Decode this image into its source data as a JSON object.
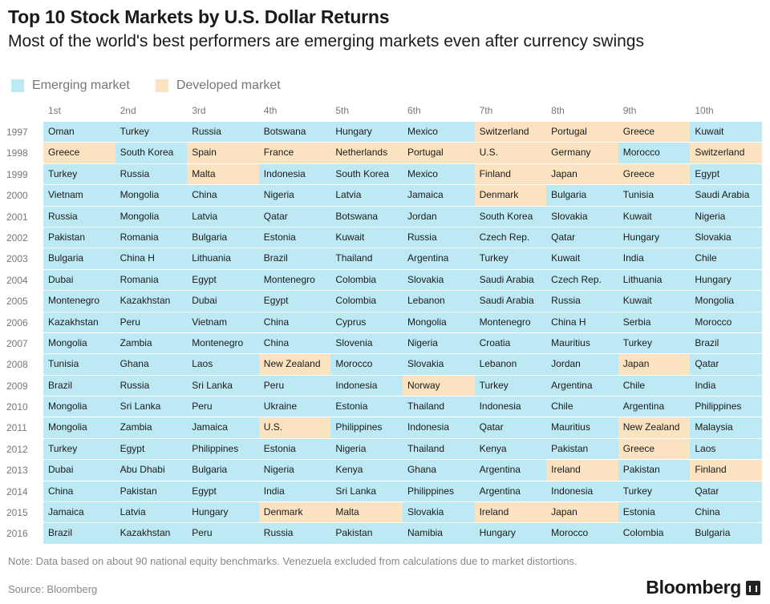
{
  "title": "Top 10 Stock Markets by U.S. Dollar Returns",
  "subtitle": "Most of the world's best performers are emerging markets even after currency swings",
  "legend": [
    {
      "label": "Emerging market",
      "color": "#bde9f5"
    },
    {
      "label": "Developed market",
      "color": "#fbe3c2"
    }
  ],
  "note": "Note: Data based on about 90 national equity benchmarks. Venezuela excluded from calculations due to market distortions.",
  "source": "Source: Bloomberg",
  "brand": "Bloomberg",
  "chart_data": {
    "type": "table",
    "columns": [
      "1st",
      "2nd",
      "3rd",
      "4th",
      "5th",
      "6th",
      "7th",
      "8th",
      "9th",
      "10th"
    ],
    "rows": [
      {
        "year": "1997",
        "cells": [
          [
            "Oman",
            "e"
          ],
          [
            "Turkey",
            "e"
          ],
          [
            "Russia",
            "e"
          ],
          [
            "Botswana",
            "e"
          ],
          [
            "Hungary",
            "e"
          ],
          [
            "Mexico",
            "e"
          ],
          [
            "Switzerland",
            "d"
          ],
          [
            "Portugal",
            "d"
          ],
          [
            "Greece",
            "d"
          ],
          [
            "Kuwait",
            "e"
          ]
        ]
      },
      {
        "year": "1998",
        "cells": [
          [
            "Greece",
            "d"
          ],
          [
            "South Korea",
            "e"
          ],
          [
            "Spain",
            "d"
          ],
          [
            "France",
            "d"
          ],
          [
            "Netherlands",
            "d"
          ],
          [
            "Portugal",
            "d"
          ],
          [
            "U.S.",
            "d"
          ],
          [
            "Germany",
            "d"
          ],
          [
            "Morocco",
            "e"
          ],
          [
            "Switzerland",
            "d"
          ]
        ]
      },
      {
        "year": "1999",
        "cells": [
          [
            "Turkey",
            "e"
          ],
          [
            "Russia",
            "e"
          ],
          [
            "Malta",
            "d"
          ],
          [
            "Indonesia",
            "e"
          ],
          [
            "South Korea",
            "e"
          ],
          [
            "Mexico",
            "e"
          ],
          [
            "Finland",
            "d"
          ],
          [
            "Japan",
            "d"
          ],
          [
            "Greece",
            "d"
          ],
          [
            "Egypt",
            "e"
          ]
        ]
      },
      {
        "year": "2000",
        "cells": [
          [
            "Vietnam",
            "e"
          ],
          [
            "Mongolia",
            "e"
          ],
          [
            "China",
            "e"
          ],
          [
            "Nigeria",
            "e"
          ],
          [
            "Latvia",
            "e"
          ],
          [
            "Jamaica",
            "e"
          ],
          [
            "Denmark",
            "d"
          ],
          [
            "Bulgaria",
            "e"
          ],
          [
            "Tunisia",
            "e"
          ],
          [
            "Saudi Arabia",
            "e"
          ]
        ]
      },
      {
        "year": "2001",
        "cells": [
          [
            "Russia",
            "e"
          ],
          [
            "Mongolia",
            "e"
          ],
          [
            "Latvia",
            "e"
          ],
          [
            "Qatar",
            "e"
          ],
          [
            "Botswana",
            "e"
          ],
          [
            "Jordan",
            "e"
          ],
          [
            "South Korea",
            "e"
          ],
          [
            "Slovakia",
            "e"
          ],
          [
            "Kuwait",
            "e"
          ],
          [
            "Nigeria",
            "e"
          ]
        ]
      },
      {
        "year": "2002",
        "cells": [
          [
            "Pakistan",
            "e"
          ],
          [
            "Romania",
            "e"
          ],
          [
            "Bulgaria",
            "e"
          ],
          [
            "Estonia",
            "e"
          ],
          [
            "Kuwait",
            "e"
          ],
          [
            "Russia",
            "e"
          ],
          [
            "Czech Rep.",
            "e"
          ],
          [
            "Qatar",
            "e"
          ],
          [
            "Hungary",
            "e"
          ],
          [
            "Slovakia",
            "e"
          ]
        ]
      },
      {
        "year": "2003",
        "cells": [
          [
            "Bulgaria",
            "e"
          ],
          [
            "China H",
            "e"
          ],
          [
            "Lithuania",
            "e"
          ],
          [
            "Brazil",
            "e"
          ],
          [
            "Thailand",
            "e"
          ],
          [
            "Argentina",
            "e"
          ],
          [
            "Turkey",
            "e"
          ],
          [
            "Kuwait",
            "e"
          ],
          [
            "India",
            "e"
          ],
          [
            "Chile",
            "e"
          ]
        ]
      },
      {
        "year": "2004",
        "cells": [
          [
            "Dubai",
            "e"
          ],
          [
            "Romania",
            "e"
          ],
          [
            "Egypt",
            "e"
          ],
          [
            "Montenegro",
            "e"
          ],
          [
            "Colombia",
            "e"
          ],
          [
            "Slovakia",
            "e"
          ],
          [
            "Saudi Arabia",
            "e"
          ],
          [
            "Czech Rep.",
            "e"
          ],
          [
            "Lithuania",
            "e"
          ],
          [
            "Hungary",
            "e"
          ]
        ]
      },
      {
        "year": "2005",
        "cells": [
          [
            "Montenegro",
            "e"
          ],
          [
            "Kazakhstan",
            "e"
          ],
          [
            "Dubai",
            "e"
          ],
          [
            "Egypt",
            "e"
          ],
          [
            "Colombia",
            "e"
          ],
          [
            "Lebanon",
            "e"
          ],
          [
            "Saudi Arabia",
            "e"
          ],
          [
            "Russia",
            "e"
          ],
          [
            "Kuwait",
            "e"
          ],
          [
            "Mongolia",
            "e"
          ]
        ]
      },
      {
        "year": "2006",
        "cells": [
          [
            "Kazakhstan",
            "e"
          ],
          [
            "Peru",
            "e"
          ],
          [
            "Vietnam",
            "e"
          ],
          [
            "China",
            "e"
          ],
          [
            "Cyprus",
            "e"
          ],
          [
            "Mongolia",
            "e"
          ],
          [
            "Montenegro",
            "e"
          ],
          [
            "China H",
            "e"
          ],
          [
            "Serbia",
            "e"
          ],
          [
            "Morocco",
            "e"
          ]
        ]
      },
      {
        "year": "2007",
        "cells": [
          [
            "Mongolia",
            "e"
          ],
          [
            "Zambia",
            "e"
          ],
          [
            "Montenegro",
            "e"
          ],
          [
            "China",
            "e"
          ],
          [
            "Slovenia",
            "e"
          ],
          [
            "Nigeria",
            "e"
          ],
          [
            "Croatia",
            "e"
          ],
          [
            "Mauritius",
            "e"
          ],
          [
            "Turkey",
            "e"
          ],
          [
            "Brazil",
            "e"
          ]
        ]
      },
      {
        "year": "2008",
        "cells": [
          [
            "Tunisia",
            "e"
          ],
          [
            "Ghana",
            "e"
          ],
          [
            "Laos",
            "e"
          ],
          [
            "New Zealand",
            "d"
          ],
          [
            "Morocco",
            "e"
          ],
          [
            "Slovakia",
            "e"
          ],
          [
            "Lebanon",
            "e"
          ],
          [
            "Jordan",
            "e"
          ],
          [
            "Japan",
            "d"
          ],
          [
            "Qatar",
            "e"
          ]
        ]
      },
      {
        "year": "2009",
        "cells": [
          [
            "Brazil",
            "e"
          ],
          [
            "Russia",
            "e"
          ],
          [
            "Sri Lanka",
            "e"
          ],
          [
            "Peru",
            "e"
          ],
          [
            "Indonesia",
            "e"
          ],
          [
            "Norway",
            "d"
          ],
          [
            "Turkey",
            "e"
          ],
          [
            "Argentina",
            "e"
          ],
          [
            "Chile",
            "e"
          ],
          [
            "India",
            "e"
          ]
        ]
      },
      {
        "year": "2010",
        "cells": [
          [
            "Mongolia",
            "e"
          ],
          [
            "Sri Lanka",
            "e"
          ],
          [
            "Peru",
            "e"
          ],
          [
            "Ukraine",
            "e"
          ],
          [
            "Estonia",
            "e"
          ],
          [
            "Thailand",
            "e"
          ],
          [
            "Indonesia",
            "e"
          ],
          [
            "Chile",
            "e"
          ],
          [
            "Argentina",
            "e"
          ],
          [
            "Philippines",
            "e"
          ]
        ]
      },
      {
        "year": "2011",
        "cells": [
          [
            "Mongolia",
            "e"
          ],
          [
            "Zambia",
            "e"
          ],
          [
            "Jamaica",
            "e"
          ],
          [
            "U.S.",
            "d"
          ],
          [
            "Philippines",
            "e"
          ],
          [
            "Indonesia",
            "e"
          ],
          [
            "Qatar",
            "e"
          ],
          [
            "Mauritius",
            "e"
          ],
          [
            "New Zealand",
            "d"
          ],
          [
            "Malaysia",
            "e"
          ]
        ]
      },
      {
        "year": "2012",
        "cells": [
          [
            "Turkey",
            "e"
          ],
          [
            "Egypt",
            "e"
          ],
          [
            "Philippines",
            "e"
          ],
          [
            "Estonia",
            "e"
          ],
          [
            "Nigeria",
            "e"
          ],
          [
            "Thailand",
            "e"
          ],
          [
            "Kenya",
            "e"
          ],
          [
            "Pakistan",
            "e"
          ],
          [
            "Greece",
            "d"
          ],
          [
            "Laos",
            "e"
          ]
        ]
      },
      {
        "year": "2013",
        "cells": [
          [
            "Dubai",
            "e"
          ],
          [
            "Abu Dhabi",
            "e"
          ],
          [
            "Bulgaria",
            "e"
          ],
          [
            "Nigeria",
            "e"
          ],
          [
            "Kenya",
            "e"
          ],
          [
            "Ghana",
            "e"
          ],
          [
            "Argentina",
            "e"
          ],
          [
            "Ireland",
            "d"
          ],
          [
            "Pakistan",
            "e"
          ],
          [
            "Finland",
            "d"
          ]
        ]
      },
      {
        "year": "2014",
        "cells": [
          [
            "China",
            "e"
          ],
          [
            "Pakistan",
            "e"
          ],
          [
            "Egypt",
            "e"
          ],
          [
            "India",
            "e"
          ],
          [
            "Sri Lanka",
            "e"
          ],
          [
            "Philippines",
            "e"
          ],
          [
            "Argentina",
            "e"
          ],
          [
            "Indonesia",
            "e"
          ],
          [
            "Turkey",
            "e"
          ],
          [
            "Qatar",
            "e"
          ]
        ]
      },
      {
        "year": "2015",
        "cells": [
          [
            "Jamaica",
            "e"
          ],
          [
            "Latvia",
            "e"
          ],
          [
            "Hungary",
            "e"
          ],
          [
            "Denmark",
            "d"
          ],
          [
            "Malta",
            "d"
          ],
          [
            "Slovakia",
            "e"
          ],
          [
            "Ireland",
            "d"
          ],
          [
            "Japan",
            "d"
          ],
          [
            "Estonia",
            "e"
          ],
          [
            "China",
            "e"
          ]
        ]
      },
      {
        "year": "2016",
        "cells": [
          [
            "Brazil",
            "e"
          ],
          [
            "Kazakhstan",
            "e"
          ],
          [
            "Peru",
            "e"
          ],
          [
            "Russia",
            "e"
          ],
          [
            "Pakistan",
            "e"
          ],
          [
            "Namibia",
            "e"
          ],
          [
            "Hungary",
            "e"
          ],
          [
            "Morocco",
            "e"
          ],
          [
            "Colombia",
            "e"
          ],
          [
            "Bulgaria",
            "e"
          ]
        ]
      }
    ]
  }
}
